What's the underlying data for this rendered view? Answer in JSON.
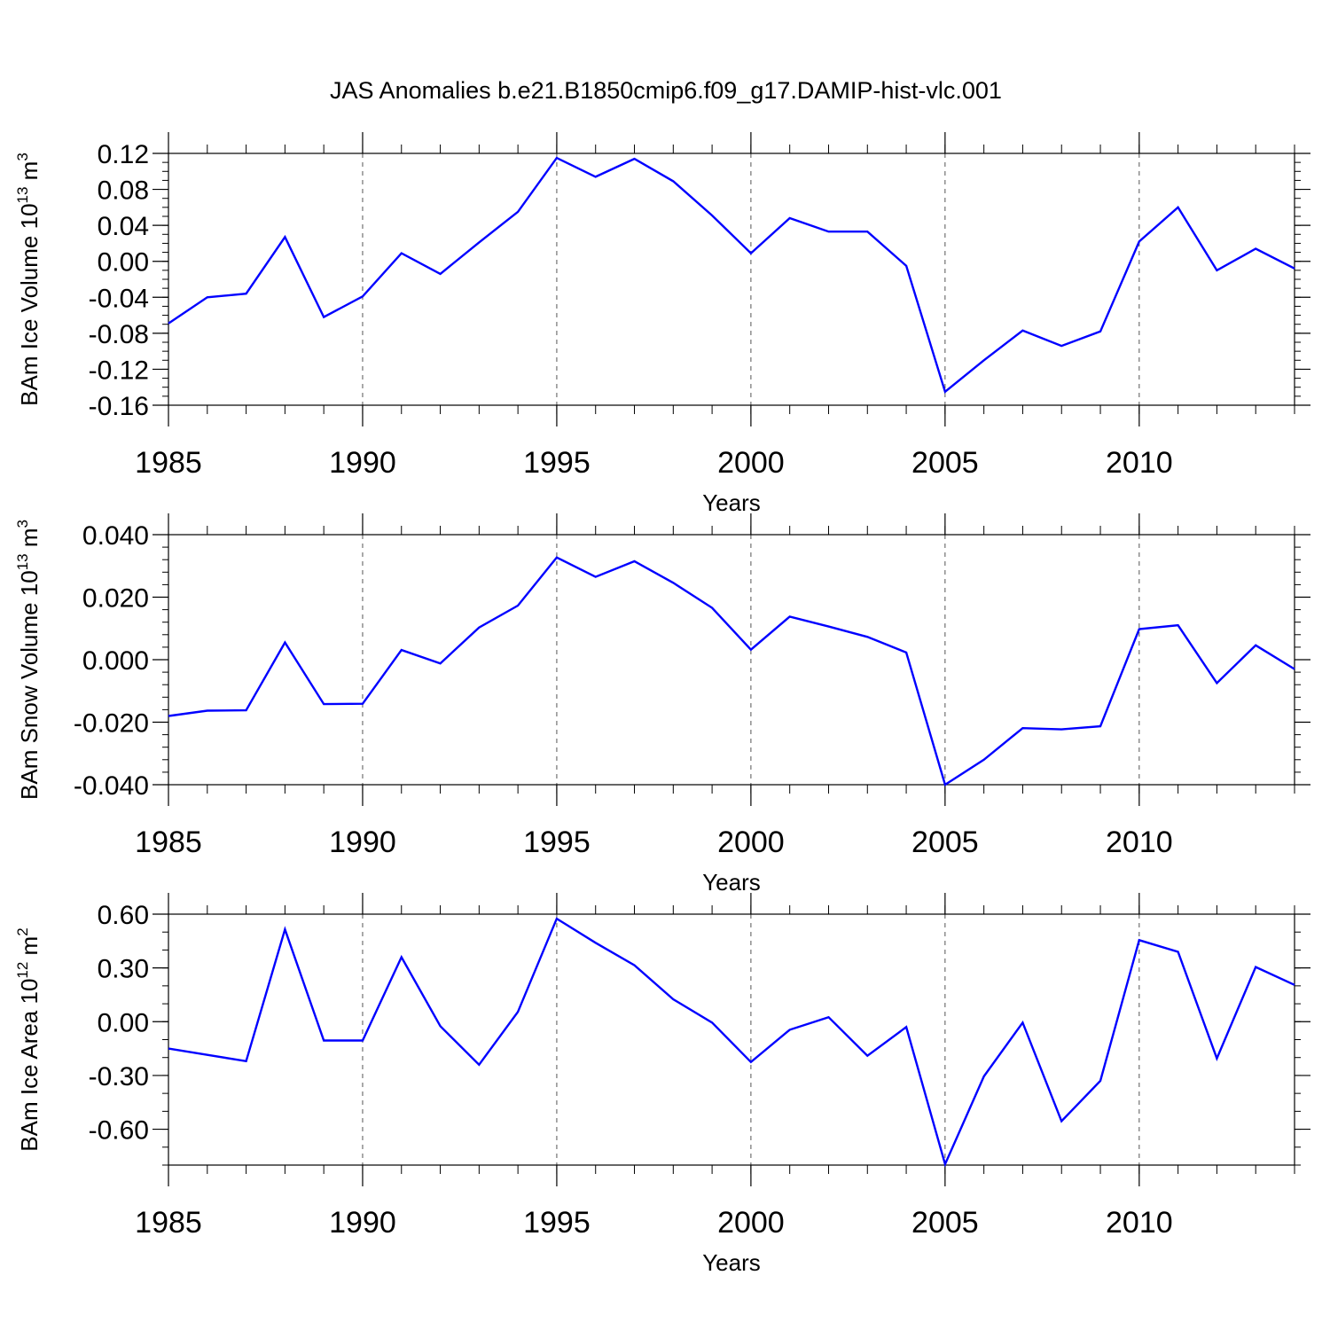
{
  "title": "JAS Anomalies b.e21.B1850cmip6.f09_g17.DAMIP-hist-vlc.001",
  "colors": {
    "series": "#0000ff",
    "axis": "#000000",
    "grid": "#555555"
  },
  "chart_data": [
    {
      "type": "line",
      "xlabel": "Years",
      "ylabel": {
        "text": "BAm Ice Volume 10",
        "sup1": "13",
        "mid": " m",
        "sup2": "3"
      },
      "xlim": [
        1985,
        2014
      ],
      "ylim": [
        -0.16,
        0.12
      ],
      "xticks": [
        "1985",
        "1990",
        "1995",
        "2000",
        "2005",
        "2010"
      ],
      "yticks": [
        "-0.16",
        "-0.12",
        "-0.08",
        "-0.04",
        "0.00",
        "0.04",
        "0.08",
        "0.12"
      ],
      "grid": "vertical dashed at labeled years",
      "x": [
        1985,
        1986,
        1987,
        1988,
        1989,
        1990,
        1991,
        1992,
        1993,
        1994,
        1995,
        1996,
        1997,
        1998,
        1999,
        2000,
        2001,
        2002,
        2003,
        2004,
        2005,
        2006,
        2007,
        2008,
        2009,
        2010,
        2011,
        2012,
        2013,
        2014
      ],
      "values": [
        -0.069,
        -0.04,
        -0.036,
        0.027,
        -0.062,
        -0.039,
        0.009,
        -0.014,
        0.021,
        0.055,
        0.115,
        0.094,
        0.114,
        0.089,
        0.051,
        0.009,
        0.048,
        0.033,
        0.033,
        -0.005,
        -0.145,
        -0.11,
        -0.077,
        -0.094,
        -0.078,
        0.022,
        0.06,
        -0.01,
        0.014,
        -0.008
      ]
    },
    {
      "type": "line",
      "xlabel": "Years",
      "ylabel": {
        "text": "BAm Snow Volume 10",
        "sup1": "13",
        "mid": " m",
        "sup2": "3"
      },
      "xlim": [
        1985,
        2014
      ],
      "ylim": [
        -0.04,
        0.04
      ],
      "xticks": [
        "1985",
        "1990",
        "1995",
        "2000",
        "2005",
        "2010"
      ],
      "yticks": [
        "-0.040",
        "-0.020",
        "0.000",
        "0.020",
        "0.040"
      ],
      "grid": "vertical dashed at labeled years",
      "x": [
        1985,
        1986,
        1987,
        1988,
        1989,
        1990,
        1991,
        1992,
        1993,
        1994,
        1995,
        1996,
        1997,
        1998,
        1999,
        2000,
        2001,
        2002,
        2003,
        2004,
        2005,
        2006,
        2007,
        2008,
        2009,
        2010,
        2011,
        2012,
        2013,
        2014
      ],
      "values": [
        -0.018,
        -0.0163,
        -0.0162,
        0.0055,
        -0.0142,
        -0.0141,
        0.0031,
        -0.0012,
        0.0103,
        0.0173,
        0.0327,
        0.0265,
        0.0315,
        0.0246,
        0.0166,
        0.0032,
        0.0138,
        0.0106,
        0.0073,
        0.0023,
        -0.04,
        -0.032,
        -0.0219,
        -0.0223,
        -0.0213,
        0.0098,
        0.011,
        -0.0075,
        0.0046,
        -0.003
      ]
    },
    {
      "type": "line",
      "xlabel": "Years",
      "ylabel": {
        "text": "BAm Ice Area 10",
        "sup1": "12",
        "mid": " m",
        "sup2": "2"
      },
      "xlim": [
        1985,
        2014
      ],
      "ylim": [
        -0.8,
        0.6
      ],
      "xticks": [
        "1985",
        "1990",
        "1995",
        "2000",
        "2005",
        "2010"
      ],
      "yticks": [
        "-0.60",
        "-0.30",
        "0.00",
        "0.30",
        "0.60"
      ],
      "grid": "vertical dashed at labeled years",
      "x": [
        1985,
        1986,
        1987,
        1988,
        1989,
        1990,
        1991,
        1992,
        1993,
        1994,
        1995,
        1996,
        1997,
        1998,
        1999,
        2000,
        2001,
        2002,
        2003,
        2004,
        2005,
        2006,
        2007,
        2008,
        2009,
        2010,
        2011,
        2012,
        2013,
        2014
      ],
      "values": [
        -0.15,
        -0.185,
        -0.22,
        0.515,
        -0.105,
        -0.105,
        0.36,
        -0.025,
        -0.24,
        0.055,
        0.575,
        0.44,
        0.315,
        0.125,
        -0.005,
        -0.225,
        -0.045,
        0.025,
        -0.19,
        -0.03,
        -0.795,
        -0.305,
        -0.005,
        -0.555,
        -0.33,
        0.455,
        0.39,
        -0.205,
        0.305,
        0.205
      ]
    }
  ]
}
